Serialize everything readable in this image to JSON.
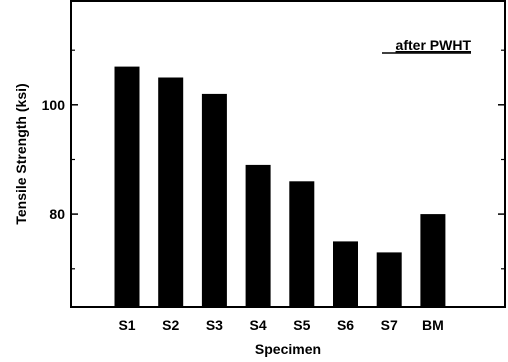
{
  "chart_data": {
    "type": "bar",
    "categories": [
      "S1",
      "S2",
      "S3",
      "S4",
      "S5",
      "S6",
      "S7",
      "BM"
    ],
    "values": [
      107,
      105,
      102,
      89,
      86,
      75,
      73,
      80
    ],
    "xlabel": "Specimen",
    "ylabel": "Tensile Strength (ksi)",
    "ylim": [
      63,
      119
    ],
    "yticks": [
      80,
      100
    ],
    "annotation": "after PWHT",
    "grid": false,
    "bar_color": "#000000"
  }
}
